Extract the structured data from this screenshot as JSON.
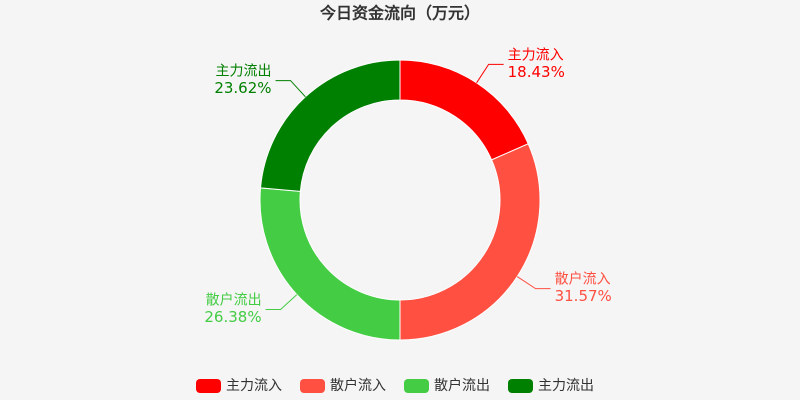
{
  "chart_data": {
    "type": "donut",
    "title": "今日资金流向（万元）",
    "categories": [
      "主力流入",
      "散户流入",
      "散户流出",
      "主力流出"
    ],
    "values": [
      18.43,
      31.57,
      26.38,
      23.62
    ],
    "value_labels": [
      "18.43%",
      "31.57%",
      "26.38%",
      "23.62%"
    ],
    "colors": [
      "#ff0000",
      "#ff5042",
      "#44cc44",
      "#008000"
    ],
    "legend": "bottom"
  }
}
